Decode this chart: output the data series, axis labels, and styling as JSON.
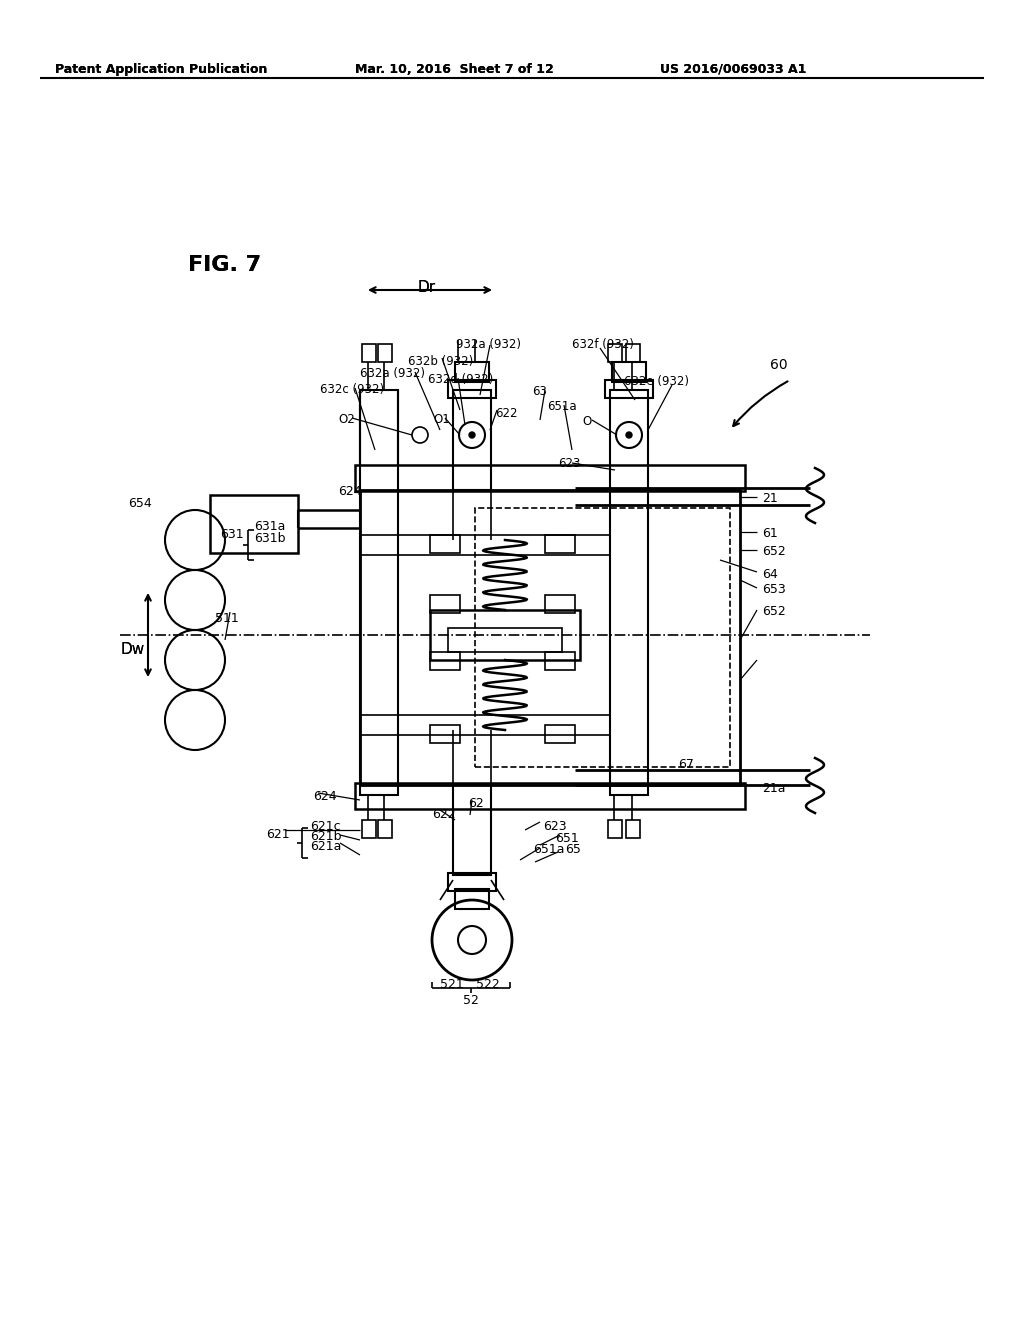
{
  "title": "FIG. 7",
  "header_left": "Patent Application Publication",
  "header_center": "Mar. 10, 2016  Sheet 7 of 12",
  "header_right": "US 2016/0069033 A1",
  "bg_color": "#ffffff",
  "line_color": "#000000",
  "fig_width": 10.24,
  "fig_height": 13.2,
  "dpi": 100
}
